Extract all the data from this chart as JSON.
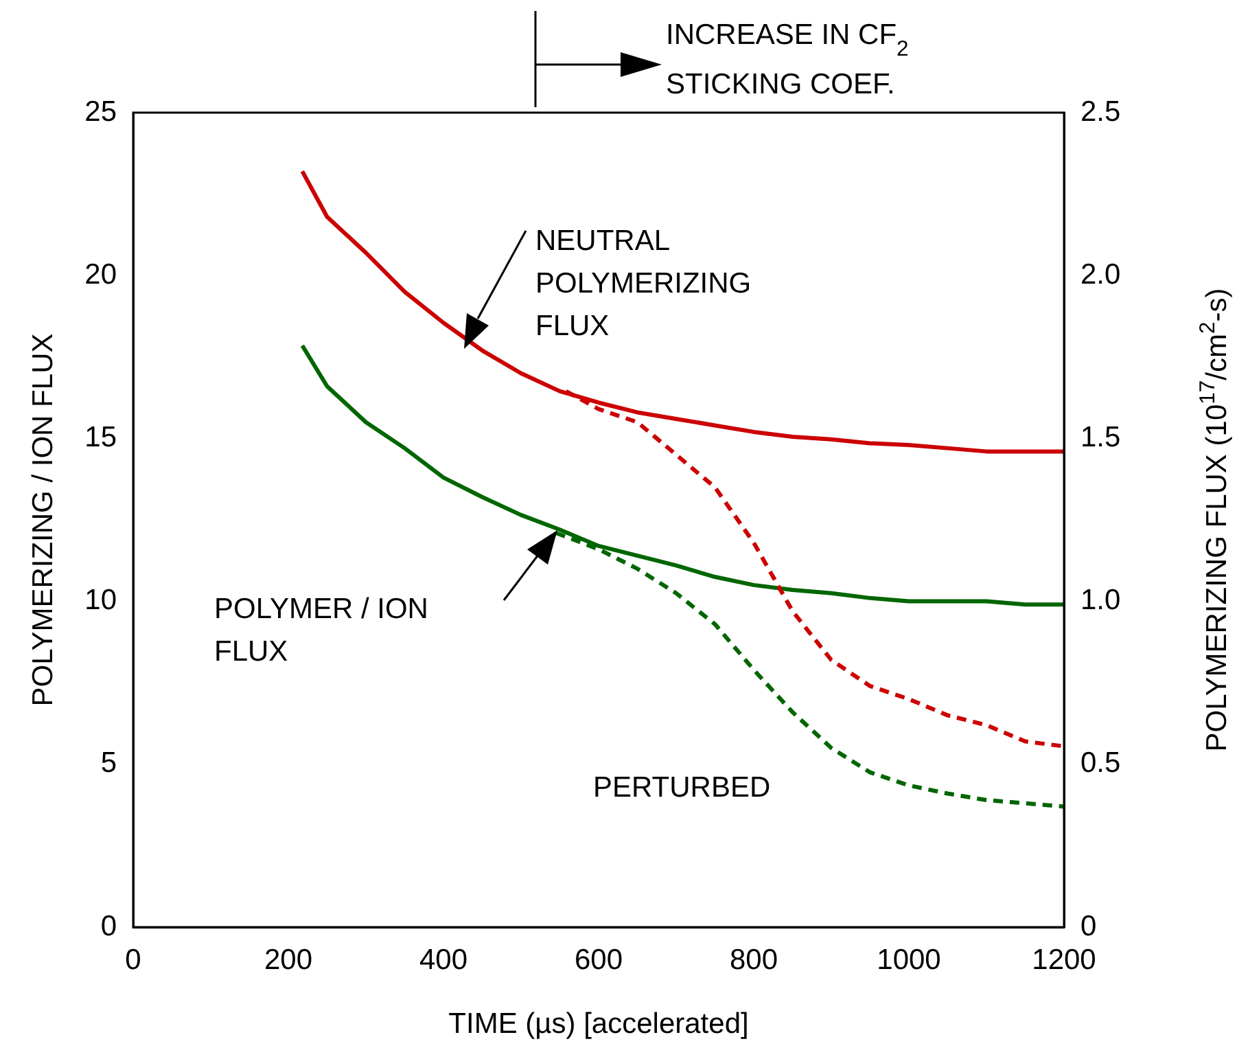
{
  "chart_data": {
    "type": "line",
    "xlabel": "TIME (µs) [accelerated]",
    "ylabel": "POLYMERIZING / ION FLUX",
    "y2label": "POLYMERIZING FLUX (10$^{17}$/cm$^{2}$-s)",
    "xlim": [
      0,
      1200
    ],
    "xticks": [
      0,
      200,
      400,
      600,
      800,
      1000,
      1200
    ],
    "ylim": [
      0,
      25
    ],
    "yticks": [
      0,
      5,
      10,
      15,
      20,
      25
    ],
    "y2lim": [
      0,
      2.5
    ],
    "y2ticks": [
      0,
      {
        "value": 0.5,
        "label": "0.5"
      },
      {
        "value": 1,
        "label": "1.0"
      },
      {
        "value": 1.5,
        "label": "1.5"
      },
      {
        "value": 2,
        "label": "2.0"
      },
      {
        "value": 2.5,
        "label": "2.5"
      }
    ],
    "grid": false,
    "legend": false,
    "marker": "none",
    "series": [
      {
        "color": "#cc0000",
        "axis": "y2",
        "line_style": "solid",
        "x": [
          218,
          250,
          300,
          350,
          400,
          450,
          500,
          550,
          600,
          650,
          700,
          750,
          800,
          850,
          900,
          950,
          1000,
          1050,
          1100,
          1150,
          1200
        ],
        "values": [
          2.32,
          2.18,
          2.07,
          1.95,
          1.855,
          1.77,
          1.7,
          1.645,
          1.61,
          1.58,
          1.56,
          1.54,
          1.52,
          1.505,
          1.497,
          1.485,
          1.48,
          1.47,
          1.46,
          1.46,
          1.46
        ]
      },
      {
        "color": "#cc0000",
        "axis": "y2",
        "line_style": "dashed",
        "x": [
          558,
          600,
          650,
          700,
          750,
          800,
          850,
          900,
          950,
          1000,
          1050,
          1100,
          1150,
          1200
        ],
        "values": [
          1.645,
          1.59,
          1.55,
          1.45,
          1.35,
          1.18,
          0.97,
          0.82,
          0.74,
          0.7,
          0.65,
          0.62,
          0.57,
          0.555
        ]
      },
      {
        "color": "#006600",
        "axis": "y",
        "line_style": "solid",
        "x": [
          218,
          250,
          300,
          350,
          400,
          450,
          500,
          550,
          600,
          650,
          700,
          750,
          800,
          850,
          900,
          950,
          1000,
          1050,
          1100,
          1150,
          1200
        ],
        "values": [
          17.85,
          16.6,
          15.5,
          14.7,
          13.8,
          13.2,
          12.65,
          12.2,
          11.7,
          11.4,
          11.1,
          10.75,
          10.5,
          10.35,
          10.25,
          10.1,
          10.0,
          10.0,
          10.0,
          9.9,
          9.9
        ]
      },
      {
        "color": "#006600",
        "axis": "y",
        "line_style": "dashed",
        "x": [
          545,
          600,
          650,
          700,
          750,
          800,
          850,
          900,
          950,
          1000,
          1050,
          1100,
          1150,
          1200
        ],
        "values": [
          12.1,
          11.6,
          11.0,
          10.25,
          9.3,
          7.9,
          6.6,
          5.5,
          4.75,
          4.35,
          4.1,
          3.9,
          3.8,
          3.7
        ]
      }
    ],
    "annotations": [
      "INCREASE IN CF$_{2}$\nSTICKING COEF.",
      "NEUTRAL\nPOLYMERIZING\nFLUX",
      "POLYMER / ION\nFLUX",
      "PERTURBED"
    ]
  }
}
